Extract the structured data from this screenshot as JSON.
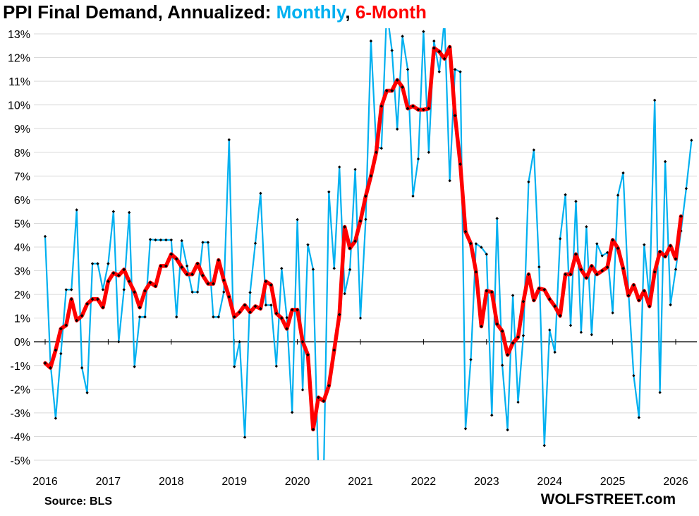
{
  "title": {
    "prefix": "PPI Final Demand,  Annualized: ",
    "monthly": "Monthly",
    "sep": ", ",
    "six_month": "6-Month"
  },
  "source": "Source: BLS",
  "brand": "WOLFSTREET.com",
  "colors": {
    "monthly": "#00b0f0",
    "six_month": "#ff0000",
    "markers": "#000000",
    "grid": "#d9d9d9"
  },
  "chart_data": {
    "type": "line",
    "ylim": [
      -5,
      13
    ],
    "yticks": [
      "-5%",
      "-4%",
      "-3%",
      "-2%",
      "-1%",
      "0%",
      "1%",
      "2%",
      "3%",
      "4%",
      "5%",
      "6%",
      "7%",
      "8%",
      "9%",
      "10%",
      "11%",
      "12%",
      "13%"
    ],
    "xticks": [
      "2016",
      "2017",
      "2018",
      "2019",
      "2020",
      "2021",
      "2022",
      "2023",
      "2024",
      "2025",
      "2026"
    ],
    "x_start": "2016-01",
    "grid": true,
    "series": [
      {
        "name": "Monthly",
        "values": [
          4.45,
          -0.9,
          -3.23,
          -0.5,
          2.2,
          2.2,
          5.57,
          -1.1,
          -2.15,
          3.3,
          3.3,
          2.2,
          3.3,
          5.5,
          0.0,
          2.2,
          5.46,
          -1.05,
          1.05,
          1.05,
          4.32,
          4.3,
          4.3,
          4.3,
          4.3,
          1.05,
          4.27,
          3.2,
          2.1,
          2.1,
          4.2,
          4.2,
          1.05,
          1.05,
          2.1,
          8.53,
          -1.05,
          0.0,
          -4.03,
          2.08,
          4.16,
          6.27,
          1.55,
          1.55,
          -1.03,
          3.1,
          1.02,
          -2.98,
          5.16,
          -2.03,
          4.1,
          3.06,
          -5.5,
          -5.6,
          6.33,
          3.1,
          7.38,
          2.03,
          3.05,
          7.28,
          1.0,
          5.17,
          12.7,
          8.23,
          8.17,
          14.0,
          12.3,
          8.98,
          12.9,
          11.5,
          6.15,
          7.72,
          13.1,
          8.0,
          12.7,
          11.4,
          13.6,
          6.8,
          11.5,
          11.4,
          -3.67,
          -0.75,
          4.14,
          3.99,
          3.7,
          -3.1,
          5.21,
          -0.99,
          -3.72,
          1.96,
          -2.55,
          0.26,
          6.75,
          8.1,
          3.16,
          -4.38,
          0.5,
          -0.44,
          4.35,
          6.21,
          0.69,
          5.93,
          0.4,
          4.86,
          0.3,
          4.14,
          3.63,
          3.77,
          1.22,
          6.19,
          7.13,
          2.11,
          -1.43,
          -3.2,
          4.1,
          1.8,
          10.2,
          -2.14,
          7.61,
          1.56,
          3.06,
          4.68,
          6.47,
          8.51
        ]
      },
      {
        "name": "6-Month",
        "values": [
          -0.9,
          -1.1,
          -0.35,
          0.55,
          0.7,
          1.8,
          0.9,
          1.1,
          1.6,
          1.8,
          1.8,
          1.45,
          2.55,
          2.9,
          2.8,
          3.05,
          2.55,
          2.1,
          1.45,
          2.15,
          2.5,
          2.35,
          3.2,
          3.2,
          3.7,
          3.5,
          3.15,
          2.85,
          2.85,
          3.3,
          2.8,
          2.45,
          2.45,
          3.45,
          2.6,
          1.9,
          1.05,
          1.25,
          1.55,
          1.25,
          1.5,
          1.4,
          2.55,
          2.4,
          1.2,
          1.0,
          0.55,
          1.35,
          1.35,
          0.0,
          -0.55,
          -3.7,
          -2.35,
          -2.5,
          -1.85,
          -0.35,
          1.15,
          4.85,
          3.95,
          4.25,
          5.1,
          6.15,
          7.0,
          8.0,
          9.95,
          10.6,
          10.6,
          11.05,
          10.75,
          9.85,
          9.95,
          9.8,
          9.8,
          9.85,
          12.4,
          12.25,
          11.95,
          12.45,
          9.55,
          7.5,
          4.65,
          4.15,
          2.95,
          0.65,
          2.15,
          2.1,
          0.75,
          0.45,
          -0.55,
          -0.05,
          0.2,
          1.7,
          2.85,
          1.75,
          2.25,
          2.2,
          1.8,
          1.5,
          1.1,
          2.85,
          2.85,
          3.7,
          3.05,
          2.7,
          3.2,
          2.85,
          3.0,
          3.15,
          4.3,
          3.95,
          3.1,
          1.95,
          2.4,
          1.75,
          2.15,
          1.5,
          2.95,
          3.8,
          3.6,
          4.05,
          3.5,
          5.3
        ]
      }
    ]
  }
}
